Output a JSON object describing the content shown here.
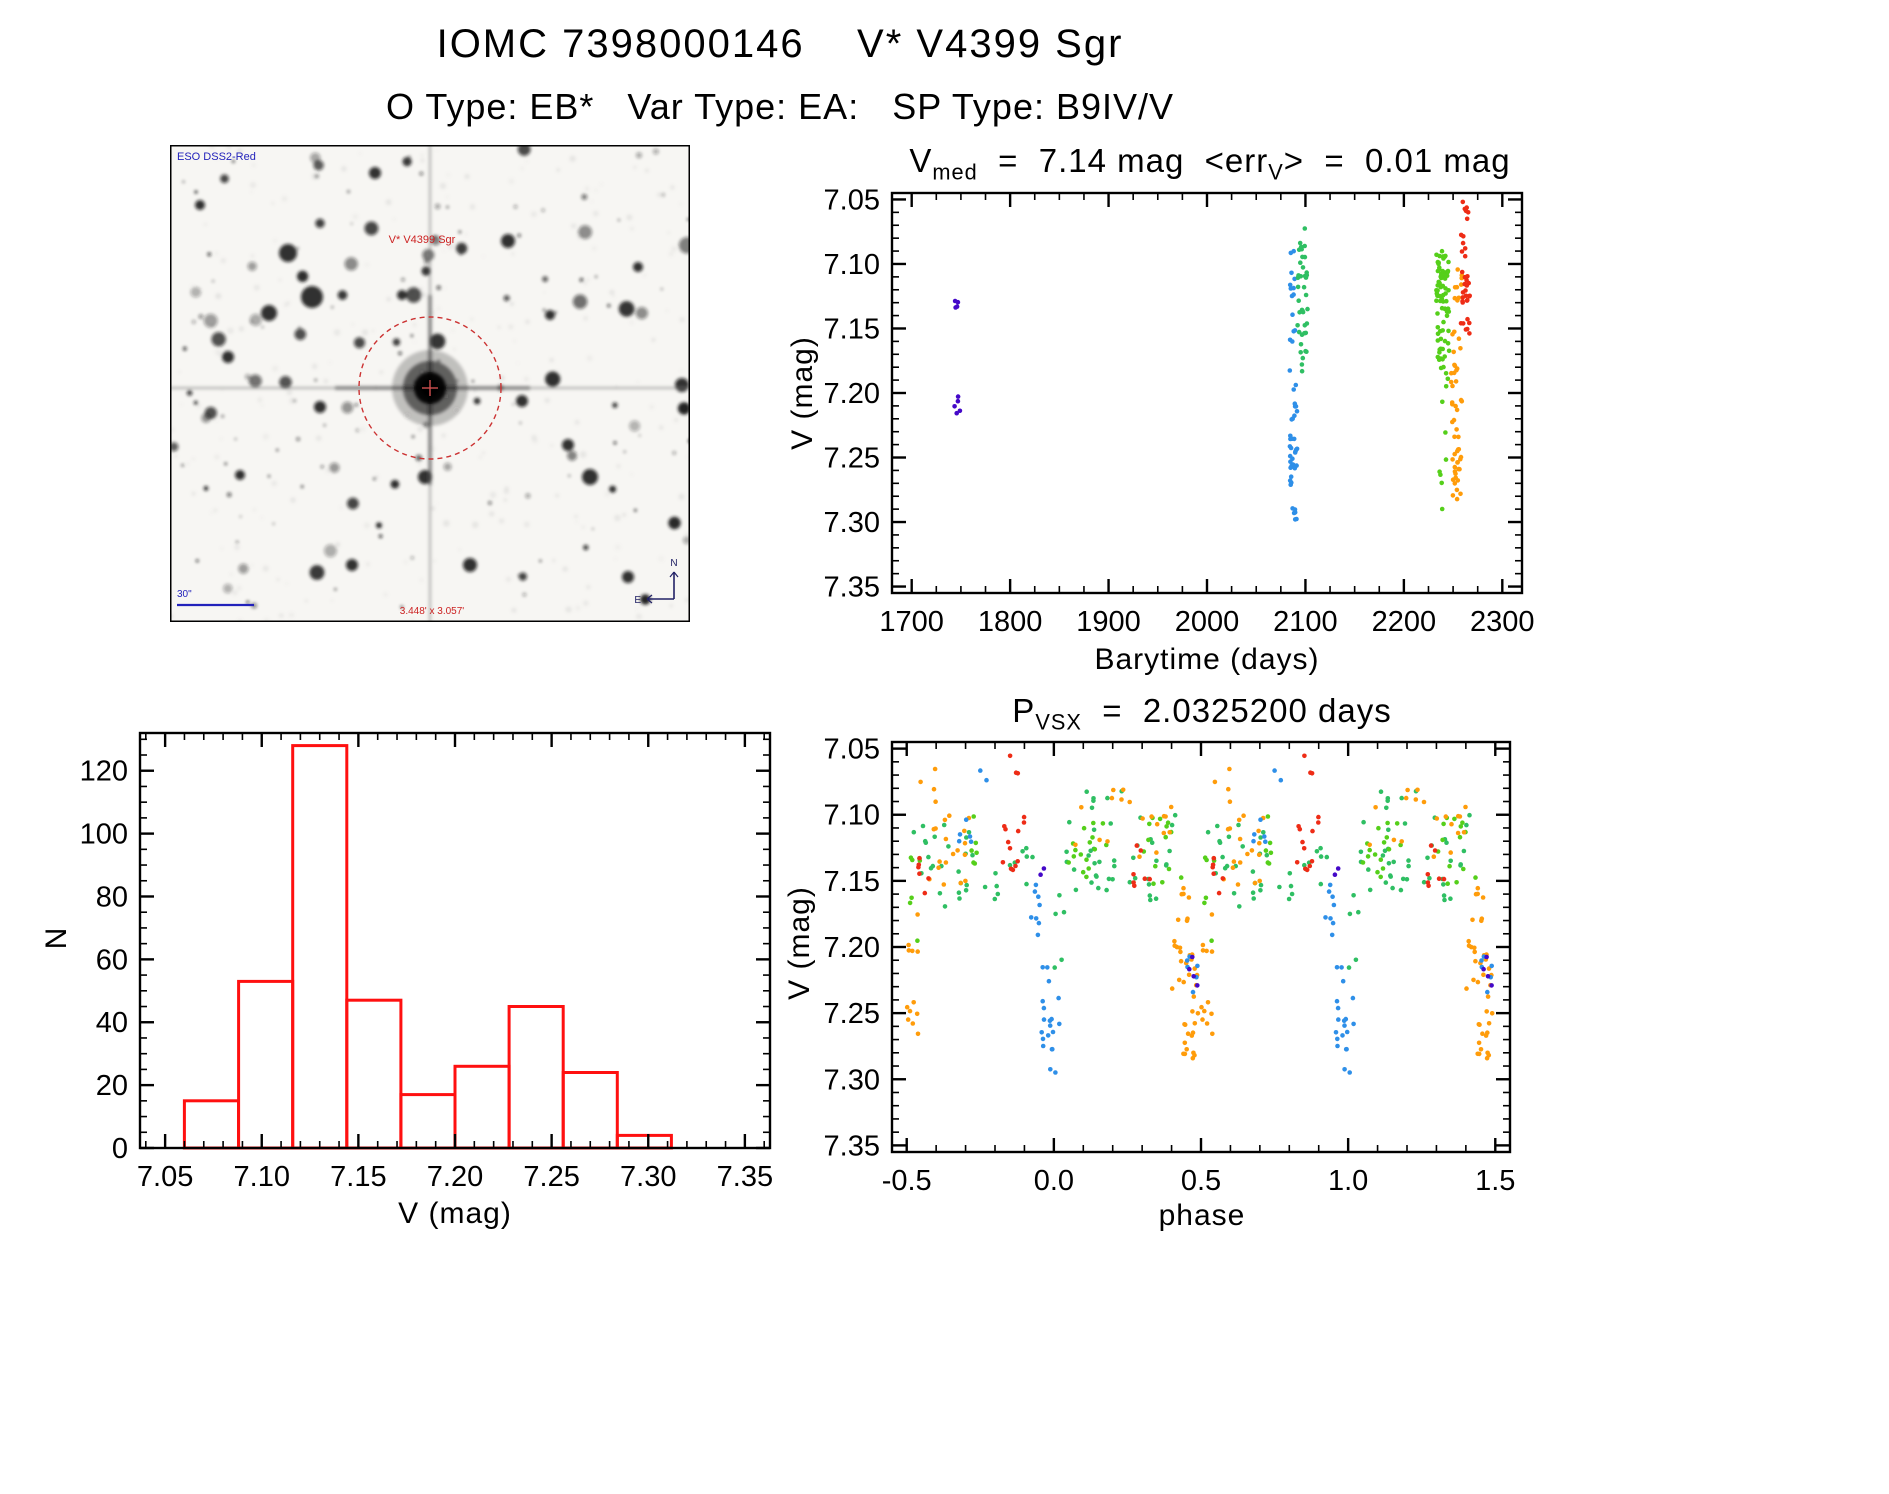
{
  "page": {
    "title": "IOMC 7398000146    V* V4399 Sgr",
    "subtitle": "O Type: EB*   Var Type: EA:   SP Type: B9IV/V"
  },
  "finder": {
    "survey_label": "ESO DSS2-Red",
    "star_label": "V* V4399 Sgr",
    "scale_label": "30\"",
    "fov_label": "3.448' x 3.057'",
    "compass_north": "N",
    "compass_east": "E"
  },
  "colors": {
    "violet": "#4408c8",
    "blue": "#2e8fe8",
    "green": "#2fbf63",
    "lime": "#55cf1a",
    "orange": "#ff9c0a",
    "red": "#ee2c16",
    "hist": "#ff1010",
    "axis": "#000000"
  },
  "chart_data": [
    {
      "id": "barytime",
      "type": "scatter",
      "title_segments": [
        {
          "t": "V"
        },
        {
          "t": "med",
          "sub": true
        },
        {
          "t": "  =  7.14 mag  <err"
        },
        {
          "t": "V",
          "sub": true
        },
        {
          "t": ">  =  0.01 mag"
        }
      ],
      "v_med_mag": "7.14",
      "err_v_mag": "0.01",
      "xlabel": "Barytime (days)",
      "ylabel": "V (mag)",
      "xlim": [
        1680,
        2320
      ],
      "ylim_top": 7.045,
      "ylim_bottom": 7.355,
      "xtick_values": [
        1700,
        1800,
        1900,
        2000,
        2100,
        2200,
        2300
      ],
      "xtick_labels": [
        "1700",
        "1800",
        "1900",
        "2000",
        "2100",
        "2200",
        "2300"
      ],
      "x_minor_div": 4,
      "ytick_values": [
        7.05,
        7.1,
        7.15,
        7.2,
        7.25,
        7.3,
        7.35
      ],
      "ytick_labels": [
        "7.05",
        "7.10",
        "7.15",
        "7.20",
        "7.25",
        "7.30",
        "7.35"
      ],
      "y_minor_div": 5,
      "series": [
        {
          "color": "violet",
          "clusters": [
            [
              1742,
              1748,
              7.128,
              7.152,
              4
            ],
            [
              1743,
              1749,
              7.196,
              7.216,
              5
            ]
          ]
        },
        {
          "color": "blue",
          "clusters": [
            [
              2083,
              2090,
              7.088,
              7.155,
              12
            ],
            [
              2084,
              2091,
              7.155,
              7.205,
              5
            ],
            [
              2084,
              2092,
              7.205,
              7.275,
              30
            ],
            [
              2086,
              2091,
              7.275,
              7.3,
              6
            ]
          ]
        },
        {
          "color": "green",
          "clusters": [
            [
              2092,
              2101,
              7.064,
              7.1,
              9
            ],
            [
              2092,
              2103,
              7.1,
              7.158,
              24
            ],
            [
              2094,
              2101,
              7.158,
              7.186,
              7
            ]
          ]
        },
        {
          "color": "lime",
          "clusters": [
            [
              2233,
              2246,
              7.09,
              7.145,
              55
            ],
            [
              2234,
              2246,
              7.145,
              7.175,
              20
            ],
            [
              2235,
              2245,
              7.175,
              7.195,
              5
            ],
            [
              2236,
              2243,
              7.195,
              7.293,
              7
            ]
          ]
        },
        {
          "color": "orange",
          "clusters": [
            [
              2247,
              2259,
              7.102,
              7.17,
              14
            ],
            [
              2248,
              2259,
              7.17,
              7.245,
              22
            ],
            [
              2249,
              2258,
              7.245,
              7.283,
              20
            ]
          ]
        },
        {
          "color": "red",
          "clusters": [
            [
              2258,
              2266,
              7.048,
              7.1,
              12
            ],
            [
              2258,
              2267,
              7.1,
              7.155,
              24
            ]
          ]
        }
      ]
    },
    {
      "id": "hist",
      "type": "bar",
      "xlabel": "V (mag)",
      "ylabel": "N",
      "xlim": [
        7.037,
        7.363
      ],
      "ylim_top": 132,
      "ylim_bottom": 0,
      "xtick_values": [
        7.05,
        7.1,
        7.15,
        7.2,
        7.25,
        7.3,
        7.35
      ],
      "xtick_labels": [
        "7.05",
        "7.10",
        "7.15",
        "7.20",
        "7.25",
        "7.30",
        "7.35"
      ],
      "x_minor_div": 5,
      "ytick_values": [
        0,
        20,
        40,
        60,
        80,
        100,
        120
      ],
      "ytick_labels": [
        "0",
        "20",
        "40",
        "60",
        "80",
        "100",
        "120"
      ],
      "y_minor_div": 4,
      "bin_edges": [
        7.06,
        7.088,
        7.116,
        7.144,
        7.172,
        7.2,
        7.228,
        7.256,
        7.284,
        7.312
      ],
      "counts": [
        15,
        53,
        128,
        47,
        17,
        26,
        45,
        24,
        4
      ]
    },
    {
      "id": "phase",
      "type": "scatter",
      "title_segments": [
        {
          "t": "P"
        },
        {
          "t": "VSX",
          "sub": true
        },
        {
          "t": "  =  2.0325200 days"
        }
      ],
      "period_days": "2.0325200",
      "xlabel": "phase",
      "ylabel": "V (mag)",
      "xlim": [
        -0.55,
        1.55
      ],
      "ylim_top": 7.045,
      "ylim_bottom": 7.355,
      "fold_offset": 1.0,
      "xtick_values": [
        -0.5,
        0.0,
        0.5,
        1.0,
        1.5
      ],
      "xtick_labels": [
        "-0.5",
        "0.0",
        "0.5",
        "1.0",
        "1.5"
      ],
      "x_minor_div": 5,
      "ytick_values": [
        7.05,
        7.1,
        7.15,
        7.2,
        7.25,
        7.3,
        7.35
      ],
      "ytick_labels": [
        "7.05",
        "7.10",
        "7.15",
        "7.20",
        "7.25",
        "7.30",
        "7.35"
      ],
      "y_minor_div": 5,
      "series": [
        {
          "color": "green",
          "clusters": [
            [
              -0.49,
              -0.26,
              7.1,
              7.172,
              24
            ],
            [
              -0.24,
              -0.06,
              7.125,
              7.175,
              13
            ],
            [
              0.0,
              0.04,
              7.15,
              7.225,
              5
            ],
            [
              0.04,
              0.22,
              7.092,
              7.158,
              22
            ],
            [
              0.1,
              0.3,
              7.06,
              7.09,
              5
            ],
            [
              0.24,
              0.42,
              7.1,
              7.165,
              18
            ]
          ]
        },
        {
          "color": "lime",
          "clusters": [
            [
              -0.49,
              -0.45,
              7.13,
              7.2,
              7
            ],
            [
              -0.3,
              -0.26,
              7.1,
              7.14,
              6
            ],
            [
              0.05,
              0.2,
              7.1,
              7.15,
              16
            ],
            [
              0.28,
              0.44,
              7.1,
              7.16,
              14
            ]
          ]
        },
        {
          "color": "orange",
          "clusters": [
            [
              -0.44,
              -0.28,
              7.1,
              7.155,
              18
            ],
            [
              -0.47,
              -0.4,
              7.062,
              7.095,
              4
            ],
            [
              0.06,
              0.26,
              7.065,
              7.125,
              9
            ],
            [
              0.28,
              0.4,
              7.085,
              7.15,
              10
            ],
            [
              0.4,
              0.46,
              7.15,
              7.235,
              16
            ],
            [
              0.44,
              0.499,
              7.2,
              7.285,
              24
            ],
            [
              -0.499,
              -0.46,
              7.17,
              7.27,
              12
            ]
          ]
        },
        {
          "color": "blue",
          "clusters": [
            [
              -0.33,
              -0.27,
              7.1,
              7.135,
              5
            ],
            [
              -0.25,
              -0.22,
              7.06,
              7.08,
              2
            ],
            [
              -0.08,
              -0.045,
              7.15,
              7.225,
              8
            ],
            [
              -0.05,
              -0.015,
              7.2,
              7.275,
              10
            ],
            [
              -0.02,
              0.02,
              7.235,
              7.302,
              10
            ],
            [
              0.44,
              0.499,
              7.18,
              7.25,
              6
            ]
          ]
        },
        {
          "color": "red",
          "clusters": [
            [
              -0.47,
              -0.42,
              7.125,
              7.16,
              6
            ],
            [
              -0.175,
              -0.1,
              7.095,
              7.16,
              12
            ],
            [
              -0.155,
              -0.12,
              7.055,
              7.08,
              3
            ],
            [
              0.27,
              0.34,
              7.12,
              7.16,
              7
            ]
          ]
        },
        {
          "color": "violet",
          "clusters": [
            [
              0.455,
              0.49,
              7.205,
              7.235,
              4
            ],
            [
              -0.05,
              -0.03,
              7.14,
              7.16,
              2
            ]
          ]
        }
      ]
    }
  ]
}
